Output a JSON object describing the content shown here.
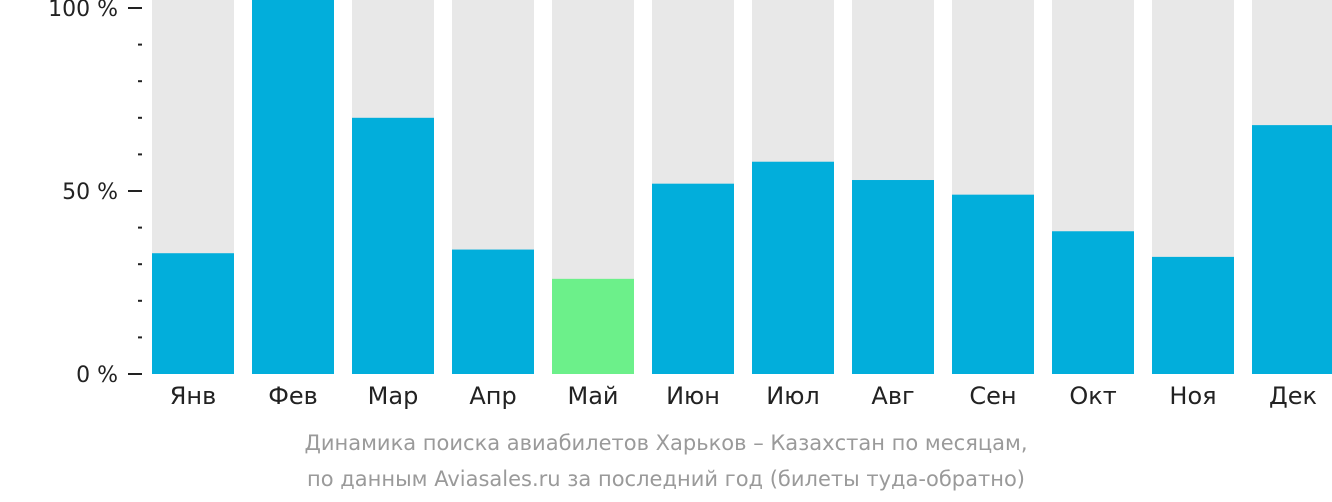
{
  "chart_data": {
    "type": "bar",
    "categories": [
      "Янв",
      "Фев",
      "Мар",
      "Апр",
      "Май",
      "Июн",
      "Июл",
      "Авг",
      "Сен",
      "Окт",
      "Ноя",
      "Дек"
    ],
    "values": [
      33,
      105,
      70,
      34,
      26,
      52,
      58,
      53,
      49,
      39,
      32,
      68
    ],
    "ylim": [
      0,
      100
    ],
    "yticks": [
      {
        "value": 100,
        "label": "100 %"
      },
      {
        "value": 50,
        "label": "50 %"
      },
      {
        "value": 0,
        "label": "0 %"
      }
    ],
    "minor_ticks": [
      10,
      20,
      30,
      40,
      60,
      70,
      80,
      90
    ],
    "highlight_index": 4,
    "grid": false,
    "colors": {
      "bar": "#02aedb",
      "highlight": "#6cf08a",
      "background_bar": "#e8e8e8",
      "axis": "#222222",
      "caption": "#9a9a9a"
    }
  },
  "caption": {
    "line1": "Динамика поиска авиабилетов Харьков – Казахстан по месяцам,",
    "line2": "по данным Aviasales.ru за последний год (билеты туда-обратно)"
  }
}
